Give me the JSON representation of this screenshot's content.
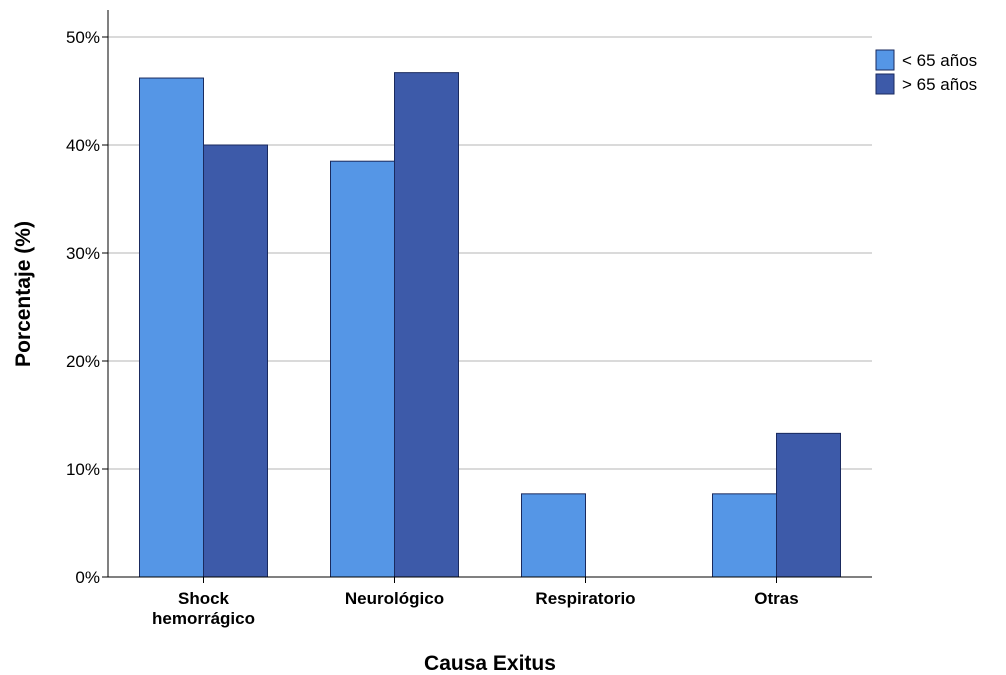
{
  "chart_data": {
    "type": "bar",
    "categories": [
      [
        "Shock",
        "hemorrágico"
      ],
      [
        "Neurológico"
      ],
      [
        "Respiratorio"
      ],
      [
        "Otras"
      ]
    ],
    "series": [
      {
        "name": "< 65 años",
        "color": "#5596e6",
        "values": [
          46.2,
          38.5,
          7.7,
          7.7
        ]
      },
      {
        "name": "> 65 años",
        "color": "#3d5aa9",
        "values": [
          40.0,
          46.7,
          0.0,
          13.3
        ]
      }
    ],
    "xlabel": "Causa Exitus",
    "ylabel": "Porcentaje (%)",
    "ylim": [
      0,
      50
    ],
    "yticks": [
      0,
      10,
      20,
      30,
      40,
      50
    ],
    "ytick_labels": [
      "0%",
      "10%",
      "20%",
      "30%",
      "40%",
      "50%"
    ],
    "grid": true,
    "legend_position": "top-right"
  }
}
